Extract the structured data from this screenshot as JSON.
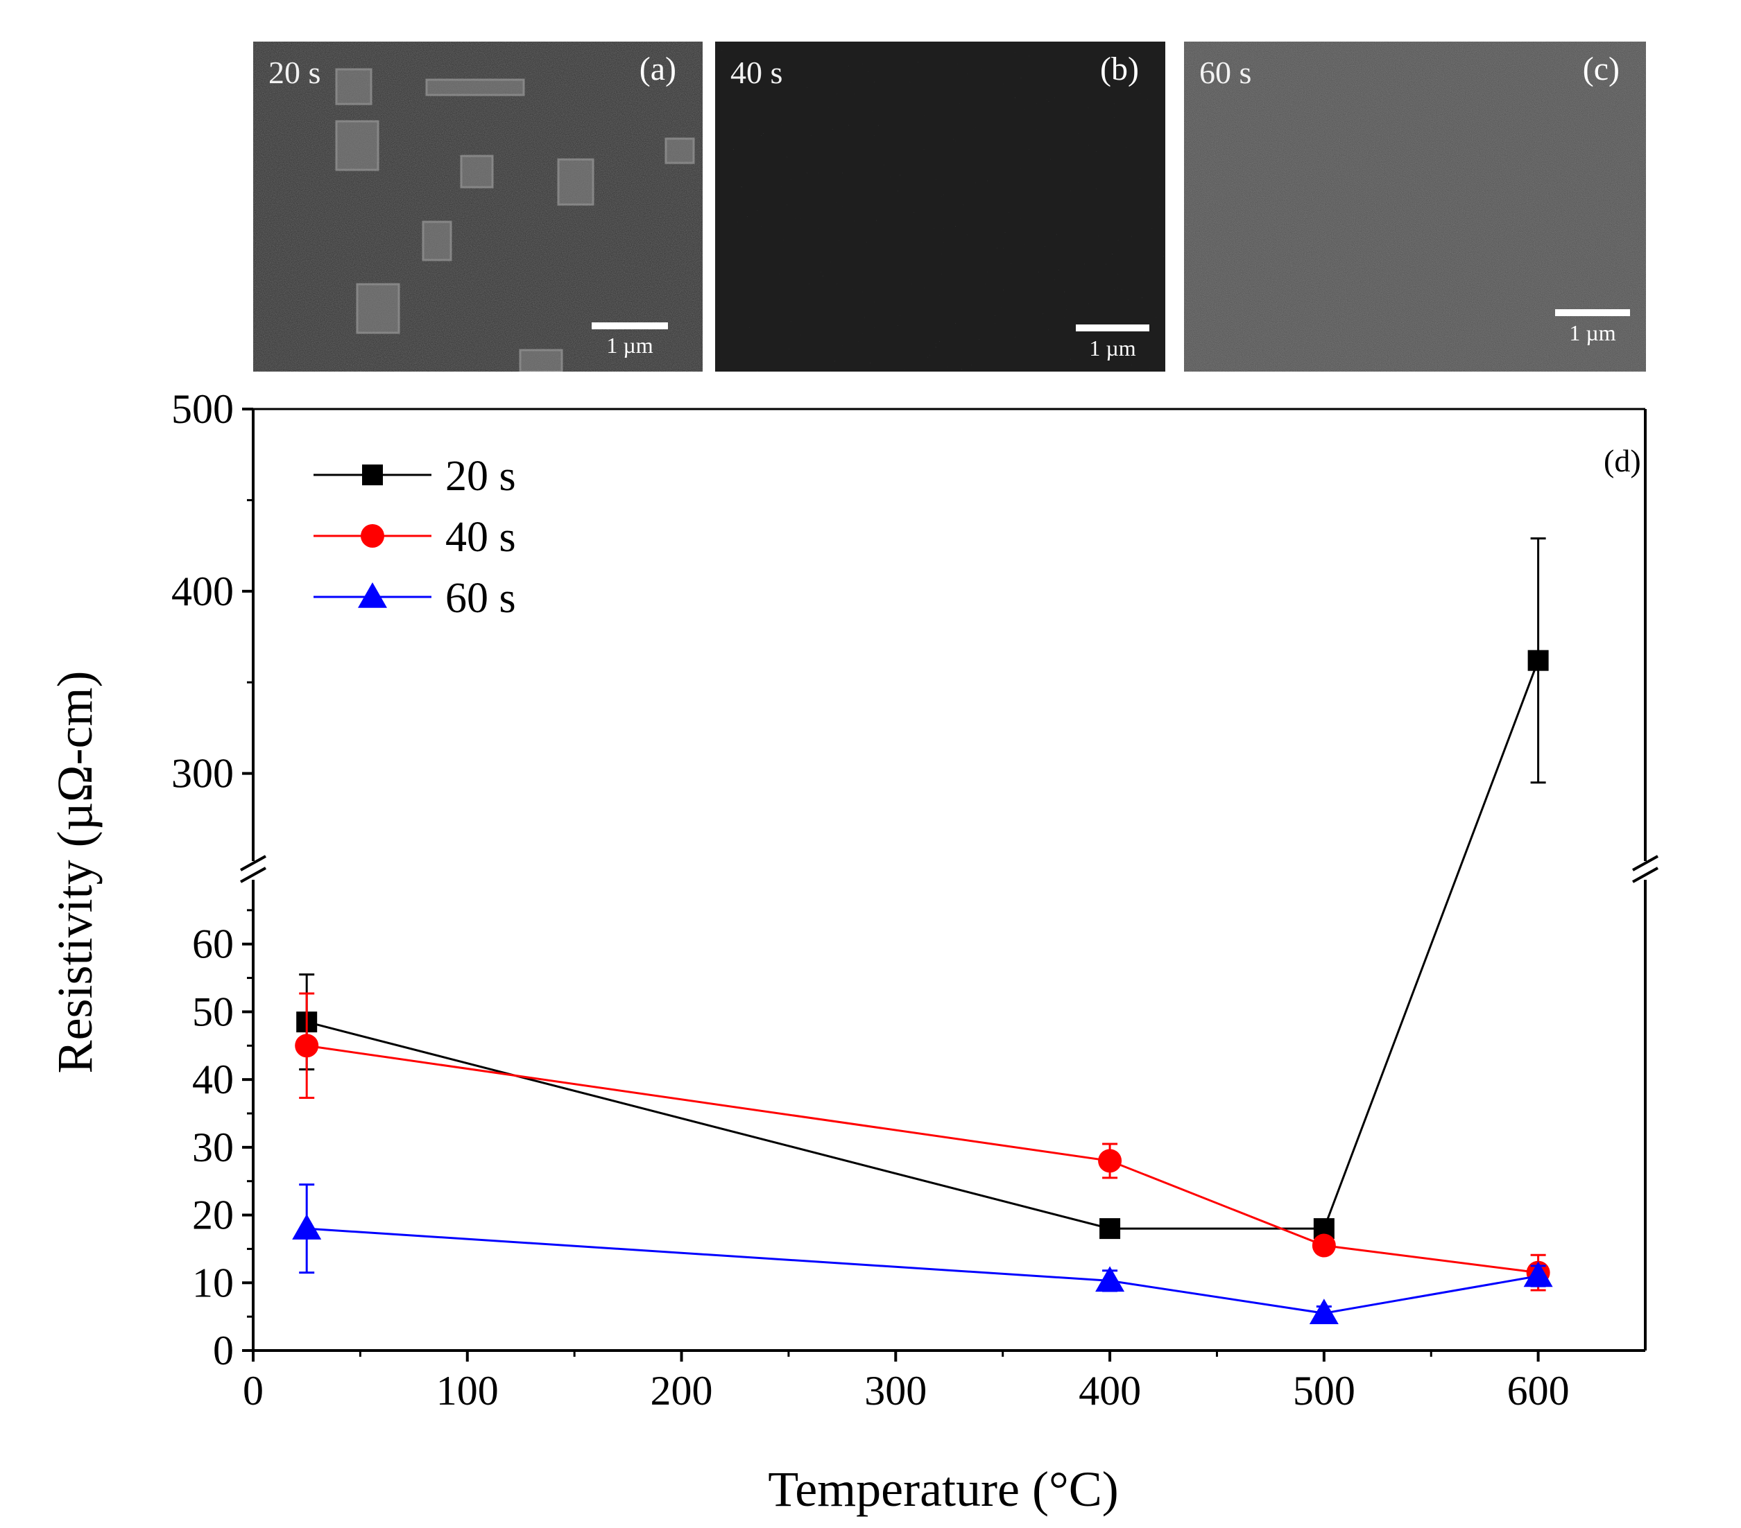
{
  "panels": [
    {
      "id": "a",
      "time_label": "20 s",
      "panel_label": "(a)",
      "scale_label": "1 µm"
    },
    {
      "id": "b",
      "time_label": "40 s",
      "panel_label": "(b)",
      "scale_label": "1 µm"
    },
    {
      "id": "c",
      "time_label": "60 s",
      "panel_label": "(c)",
      "scale_label": "1 µm"
    }
  ],
  "chart_data": {
    "type": "line",
    "panel_label": "(d)",
    "xlabel": "Temperature (°C)",
    "ylabel": "Resistivity (µΩ-cm)",
    "xlim": [
      0,
      650
    ],
    "x_ticks": [
      0,
      100,
      200,
      300,
      400,
      500,
      600
    ],
    "y_lower_range": [
      0,
      70
    ],
    "y_lower_ticks": [
      0,
      10,
      20,
      30,
      40,
      50,
      60
    ],
    "y_upper_range": [
      250,
      500
    ],
    "y_upper_ticks": [
      300,
      400,
      500
    ],
    "y_axis_break": "between 70 and 250",
    "legend_position": "top-left",
    "grid": false,
    "series": [
      {
        "name": "20 s",
        "color": "#000000",
        "marker": "square",
        "x": [
          25,
          400,
          500,
          600
        ],
        "y": [
          48.5,
          18,
          18,
          362
        ],
        "yerr": [
          7,
          0.8,
          0.8,
          67
        ]
      },
      {
        "name": "40 s",
        "color": "#ff0000",
        "marker": "circle",
        "x": [
          25,
          400,
          500,
          600
        ],
        "y": [
          45,
          28,
          15.5,
          11.5
        ],
        "yerr": [
          7.7,
          2.5,
          1,
          2.6
        ]
      },
      {
        "name": "60 s",
        "color": "#0000ff",
        "marker": "triangle",
        "x": [
          25,
          400,
          500,
          600
        ],
        "y": [
          18,
          10.3,
          5.5,
          11
        ],
        "yerr": [
          6.5,
          1.5,
          1,
          1.5
        ]
      }
    ]
  }
}
